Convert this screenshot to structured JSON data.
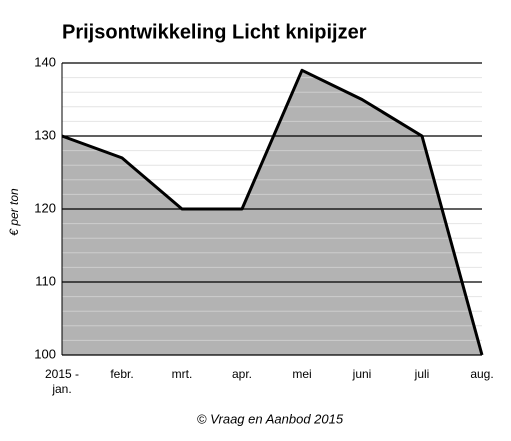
{
  "chart_data": {
    "type": "area",
    "title": "Prijsontwikkeling Licht knipijzer",
    "y_label": "€ per ton",
    "footer": "© Vraag en Aanbod 2015",
    "categories": [
      "2015 - jan.",
      "febr.",
      "mrt.",
      "apr.",
      "mei",
      "juni",
      "juli",
      "aug."
    ],
    "values": [
      130,
      127,
      120,
      120,
      139,
      135,
      130,
      100
    ],
    "color": "#b3b3b3",
    "line_color": "#000000",
    "ylim": [
      100,
      140
    ],
    "yticks": [
      100,
      110,
      120,
      130,
      140
    ],
    "grid": true
  }
}
